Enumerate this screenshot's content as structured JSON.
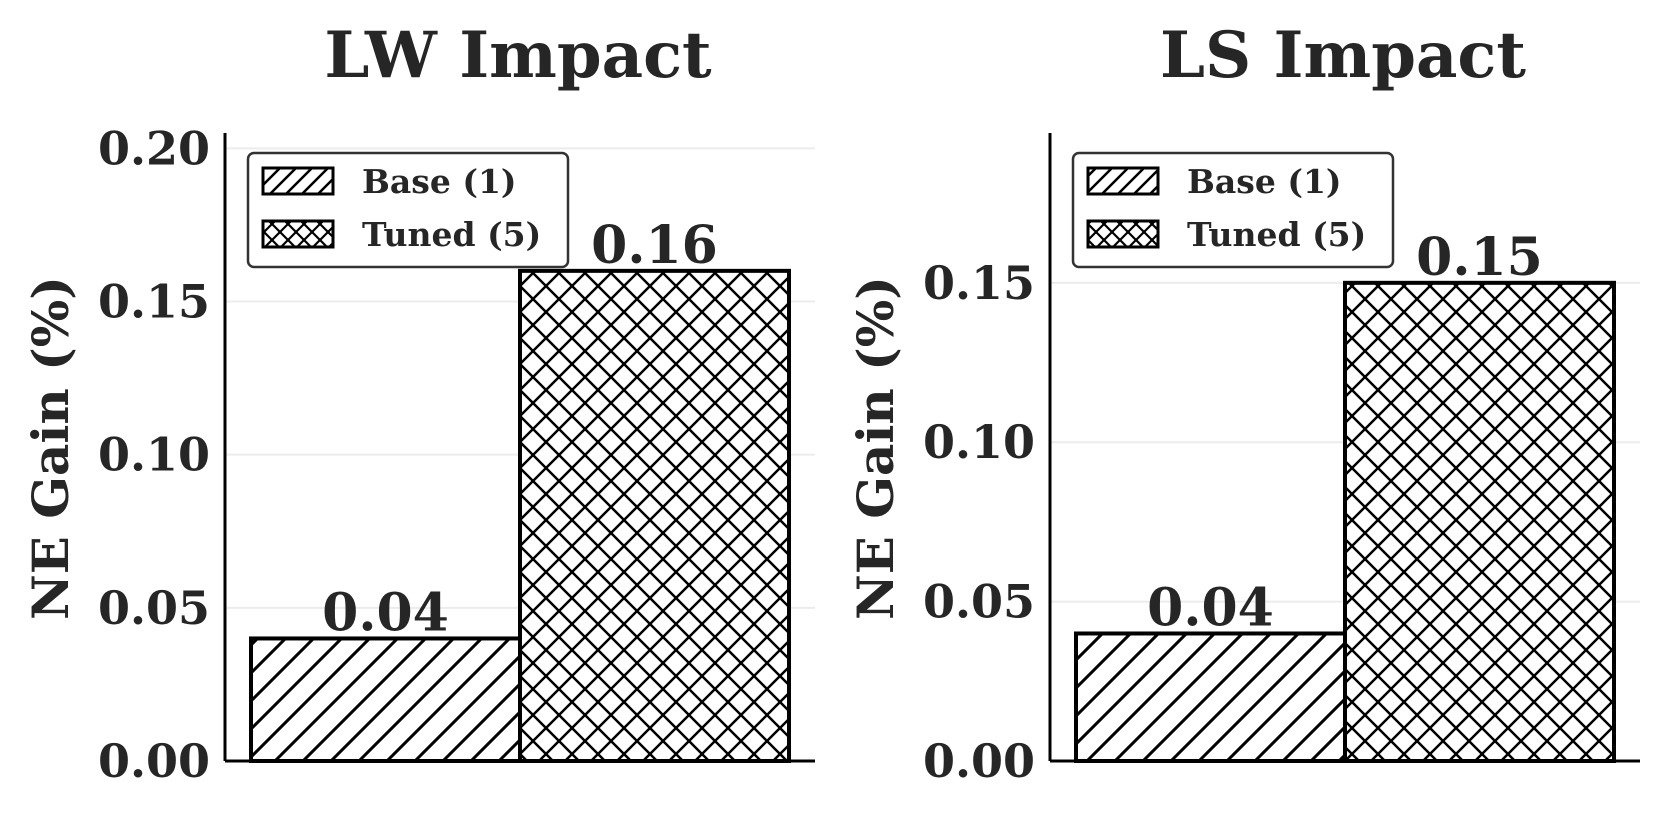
{
  "chart_data": [
    {
      "type": "bar",
      "title": "LW Impact",
      "ylabel": "NE Gain (%)",
      "xlabel": "",
      "categories": [
        "Base (1)",
        "Tuned (5)"
      ],
      "values": [
        0.04,
        0.16
      ],
      "value_labels": [
        "0.04",
        "0.16"
      ],
      "hatches": [
        "diagonal",
        "crosshatch"
      ],
      "ylim": [
        0,
        0.205
      ],
      "yticks": [
        0.0,
        0.05,
        0.1,
        0.15,
        0.2
      ],
      "ytick_labels": [
        "0.00",
        "0.05",
        "0.10",
        "0.15",
        "0.20"
      ],
      "grid": true,
      "legend": {
        "placement": "top-left",
        "entries": [
          "Base (1)",
          "Tuned (5)"
        ]
      }
    },
    {
      "type": "bar",
      "title": "LS Impact",
      "ylabel": "NE Gain (%)",
      "xlabel": "",
      "categories": [
        "Base (1)",
        "Tuned (5)"
      ],
      "values": [
        0.04,
        0.15
      ],
      "value_labels": [
        "0.04",
        "0.15"
      ],
      "hatches": [
        "diagonal",
        "crosshatch"
      ],
      "ylim": [
        0,
        0.197
      ],
      "yticks": [
        0.0,
        0.05,
        0.1,
        0.15
      ],
      "ytick_labels": [
        "0.00",
        "0.05",
        "0.10",
        "0.15"
      ],
      "grid": true,
      "legend": {
        "placement": "top-left",
        "entries": [
          "Base (1)",
          "Tuned (5)"
        ]
      }
    }
  ],
  "colors": {
    "text": "#262626",
    "edge": "#000000",
    "fill": "#ffffff",
    "grid": "#ececec"
  }
}
